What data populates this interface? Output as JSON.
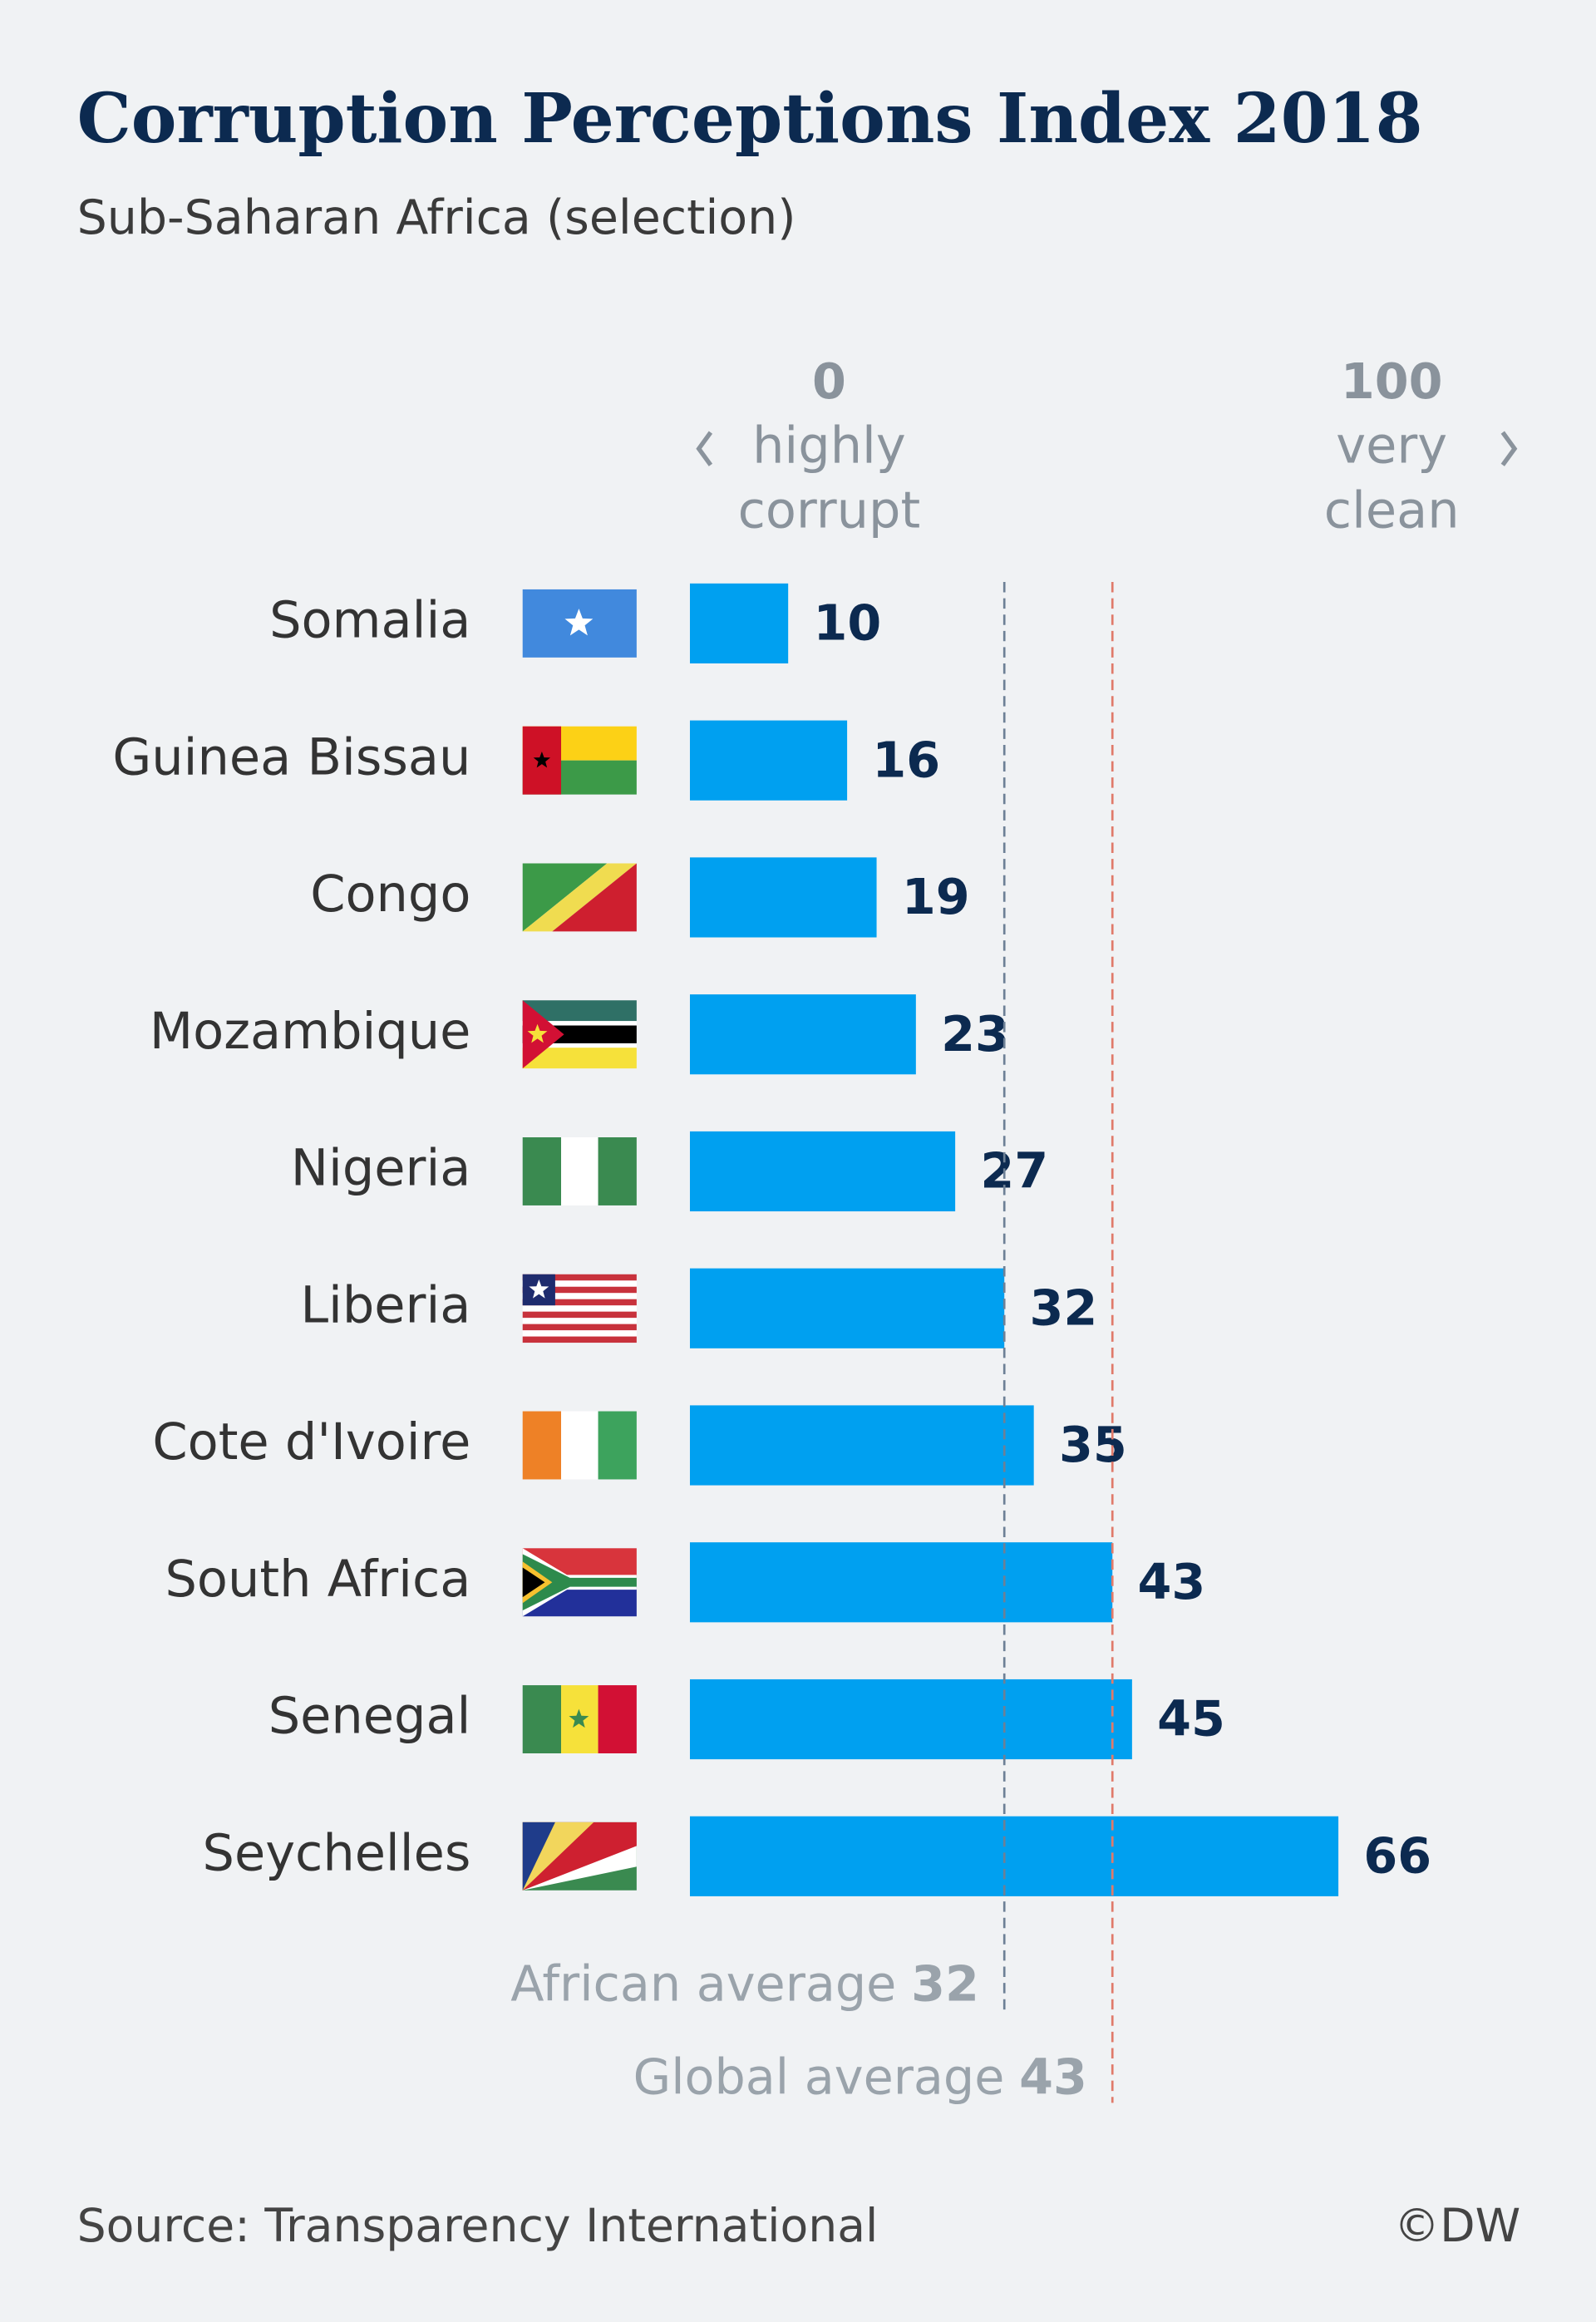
{
  "chart_data": {
    "type": "hbar",
    "title": "Corruption Perceptions Index 2018",
    "subtitle": "Sub-Saharan Africa (selection)",
    "categories": [
      "Somalia",
      "Guinea Bissau",
      "Congo",
      "Mozambique",
      "Nigeria",
      "Liberia",
      "Cote d'Ivoire",
      "South Africa",
      "Senegal",
      "Seychelles"
    ],
    "values": [
      10,
      16,
      19,
      23,
      27,
      32,
      35,
      43,
      45,
      66
    ],
    "color": "#00a0f0",
    "xlim": [
      0,
      100
    ],
    "xlim_labels": [
      [
        "highly",
        "corrupt"
      ],
      [
        "very",
        "clean"
      ]
    ],
    "reference_lines": [
      {
        "label": "African average",
        "value": 32,
        "color": "#6d8096"
      },
      {
        "label": "Global average",
        "value": 43,
        "color": "#e07a6a"
      }
    ],
    "source": "Source: Transparency International",
    "credit": "©DW"
  }
}
